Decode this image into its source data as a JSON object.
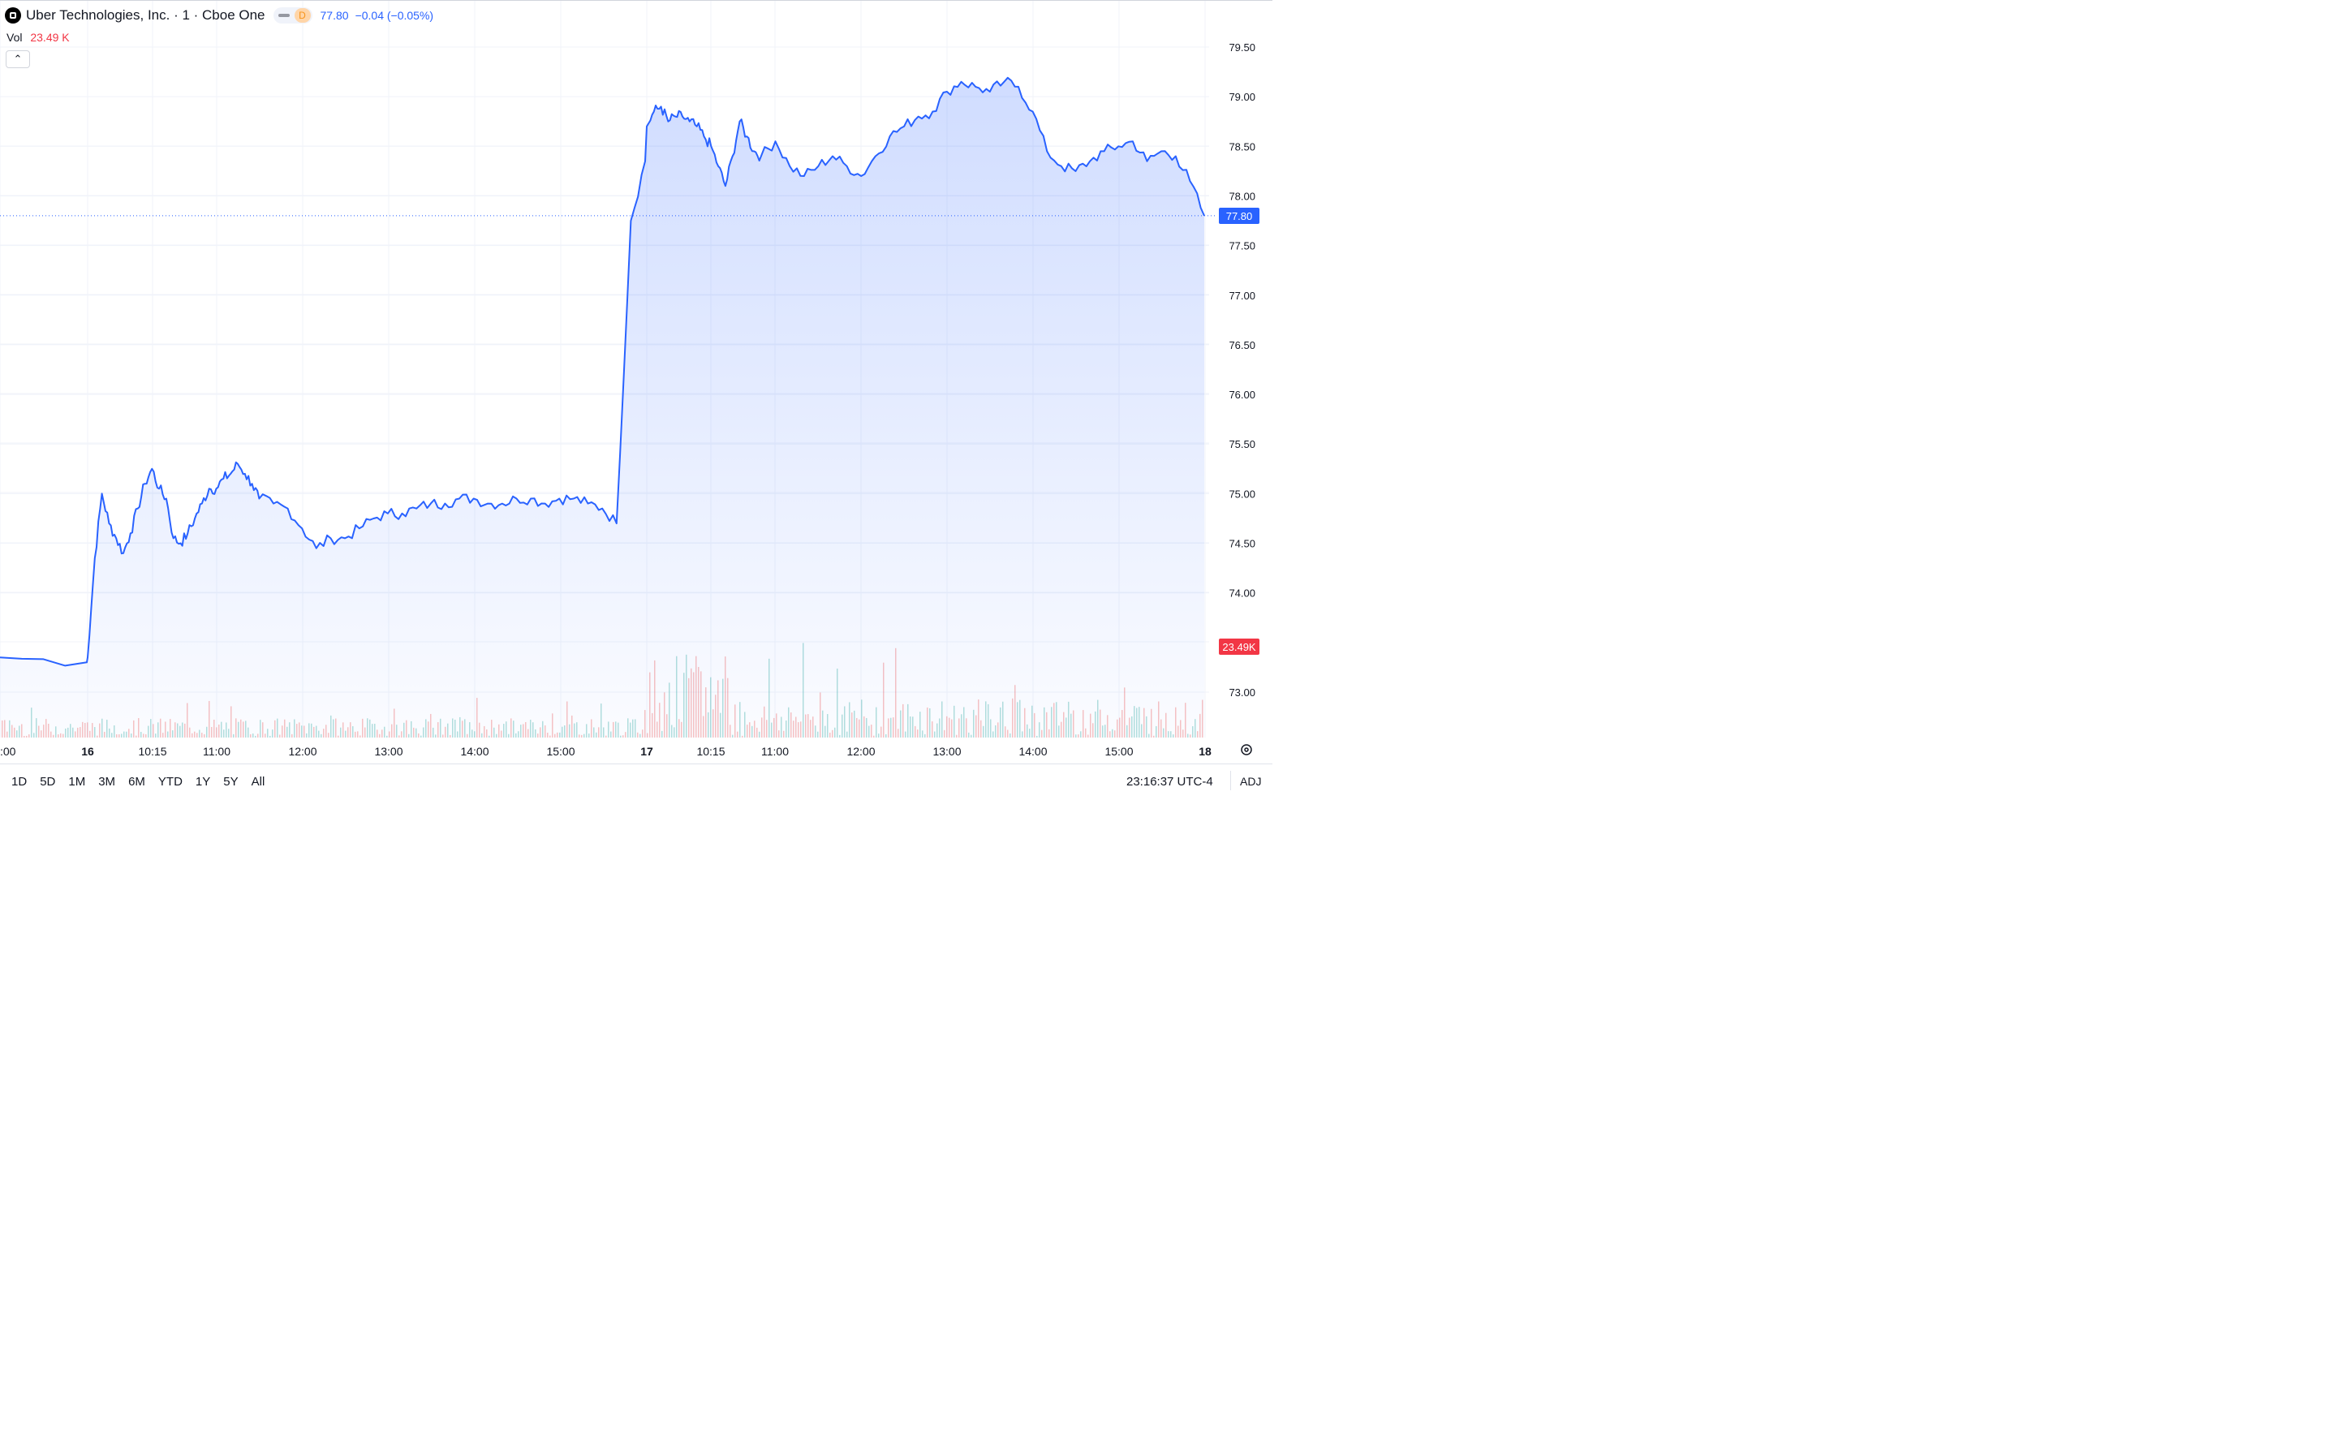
{
  "header": {
    "title": "Uber Technologies, Inc. · 1 · Cboe One",
    "mode_badge": "D",
    "price": "77.80",
    "change": "−0.04 (−0.05%)"
  },
  "volume": {
    "label": "Vol",
    "value": "23.49 K"
  },
  "price_tag": "77.80",
  "volume_tag": "23.49K",
  "ranges": [
    "1D",
    "5D",
    "1M",
    "3M",
    "6M",
    "YTD",
    "1Y",
    "5Y",
    "All"
  ],
  "clock": "23:16:37 UTC-4",
  "adj_label": "ADJ",
  "colors": {
    "line": "#2962ff",
    "fill": "#2962ff",
    "up": "#26a69a",
    "down": "#ef5350",
    "grid": "#f0f3fa",
    "axis_text": "#131722"
  },
  "chart_data": {
    "type": "area",
    "title": "Uber Technologies, Inc. · 1 · Cboe One",
    "ylim": [
      72.5,
      79.8
    ],
    "yticks": [
      "79.50",
      "79.00",
      "78.50",
      "78.00",
      "77.50",
      "77.00",
      "76.50",
      "76.00",
      "75.50",
      "75.00",
      "74.50",
      "74.00",
      "73.00"
    ],
    "xticks": [
      ":00",
      "16",
      "10:15",
      "11:00",
      "12:00",
      "13:00",
      "14:00",
      "15:00",
      "17",
      "10:15",
      "11:00",
      "12:00",
      "13:00",
      "14:00",
      "15:00",
      "18"
    ],
    "x": [
      "15 15:45",
      "15 16:00",
      "16 09:30",
      "16 09:35",
      "16 09:40",
      "16 09:45",
      "16 09:50",
      "16 09:55",
      "16 10:00",
      "16 10:05",
      "16 10:10",
      "16 10:15",
      "16 10:20",
      "16 10:25",
      "16 10:30",
      "16 10:35",
      "16 10:40",
      "16 10:45",
      "16 10:50",
      "16 10:55",
      "16 11:00",
      "16 11:05",
      "16 11:10",
      "16 11:15",
      "16 11:20",
      "16 11:25",
      "16 11:30",
      "16 11:40",
      "16 11:50",
      "16 12:00",
      "16 12:10",
      "16 12:20",
      "16 12:30",
      "16 12:40",
      "16 12:50",
      "16 13:00",
      "16 13:10",
      "16 13:20",
      "16 13:30",
      "16 13:40",
      "16 13:50",
      "16 14:00",
      "16 14:10",
      "16 14:20",
      "16 14:30",
      "16 14:40",
      "16 14:50",
      "16 15:00",
      "16 15:10",
      "16 15:20",
      "16 15:30",
      "16 15:40",
      "16 15:50",
      "16 16:00",
      "17 09:30",
      "17 09:35",
      "17 09:40",
      "17 09:45",
      "17 09:50",
      "17 09:55",
      "17 10:00",
      "17 10:05",
      "17 10:10",
      "17 10:15",
      "17 10:20",
      "17 10:25",
      "17 10:30",
      "17 10:35",
      "17 10:40",
      "17 10:45",
      "17 10:50",
      "17 11:00",
      "17 11:10",
      "17 11:20",
      "17 11:30",
      "17 11:40",
      "17 11:50",
      "17 12:00",
      "17 12:10",
      "17 12:20",
      "17 12:30",
      "17 12:40",
      "17 12:50",
      "17 13:00",
      "17 13:10",
      "17 13:20",
      "17 13:30",
      "17 13:40",
      "17 13:50",
      "17 14:00",
      "17 14:10",
      "17 14:20",
      "17 14:30",
      "17 14:40",
      "17 14:50",
      "17 15:00",
      "17 15:10",
      "17 15:20",
      "17 15:30",
      "17 15:40",
      "17 15:50",
      "17 16:00"
    ],
    "series": [
      {
        "values": [
          73.35,
          73.3,
          73.35,
          74.35,
          75.0,
          74.7,
          74.55,
          74.4,
          74.6,
          74.85,
          75.1,
          75.25,
          75.05,
          74.95,
          74.55,
          74.5,
          74.6,
          74.75,
          74.9,
          75.05,
          75.05,
          75.15,
          75.2,
          75.3,
          75.2,
          75.1,
          74.95,
          74.9,
          74.85,
          74.65,
          74.45,
          74.55,
          74.55,
          74.65,
          74.75,
          74.8,
          74.8,
          74.85,
          74.9,
          74.9,
          74.95,
          74.95,
          74.9,
          74.9,
          74.95,
          74.95,
          74.9,
          74.95,
          74.95,
          74.9,
          74.85,
          74.7,
          77.75,
          78.35,
          78.7,
          78.85,
          78.9,
          78.75,
          78.8,
          78.8,
          78.75,
          78.7,
          78.6,
          78.5,
          78.3,
          78.1,
          78.4,
          78.75,
          78.6,
          78.45,
          78.4,
          78.55,
          78.3,
          78.2,
          78.3,
          78.4,
          78.3,
          78.2,
          78.4,
          78.6,
          78.7,
          78.8,
          78.85,
          79.05,
          79.15,
          79.1,
          79.05,
          79.15,
          79.1,
          78.85,
          78.45,
          78.3,
          78.25,
          78.35,
          78.45,
          78.5,
          78.55,
          78.35,
          78.45,
          78.4,
          78.15,
          77.8
        ]
      }
    ],
    "volume_label": "Vol",
    "last_price": 77.8,
    "last_volume": "23.49K"
  }
}
